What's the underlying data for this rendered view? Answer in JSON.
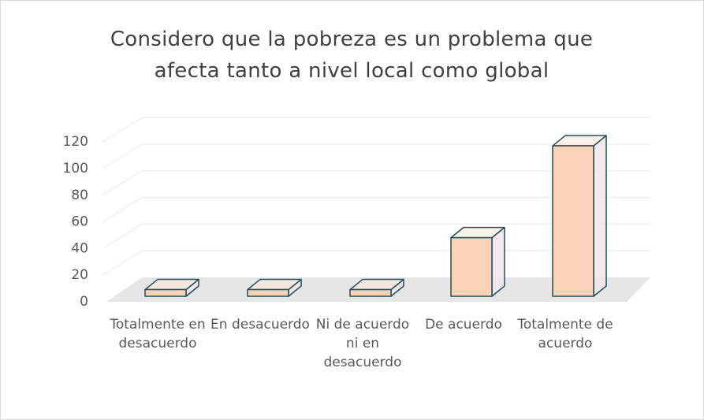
{
  "chart_data": {
    "type": "bar3d",
    "title": "Considero que la pobreza es un problema que afecta tanto a nivel local como global",
    "categories": [
      "Totalmente en desacuerdo",
      "En desacuerdo",
      "Ni de acuerdo ni en desacuerdo",
      "De acuerdo",
      "Totalmente de acuerdo"
    ],
    "values": [
      5,
      5,
      5,
      44,
      113
    ],
    "color": "#fbd3b9",
    "ylim": [
      0,
      120
    ],
    "yticks": [
      0,
      20,
      40,
      60,
      80,
      100,
      120
    ],
    "grid": true
  }
}
